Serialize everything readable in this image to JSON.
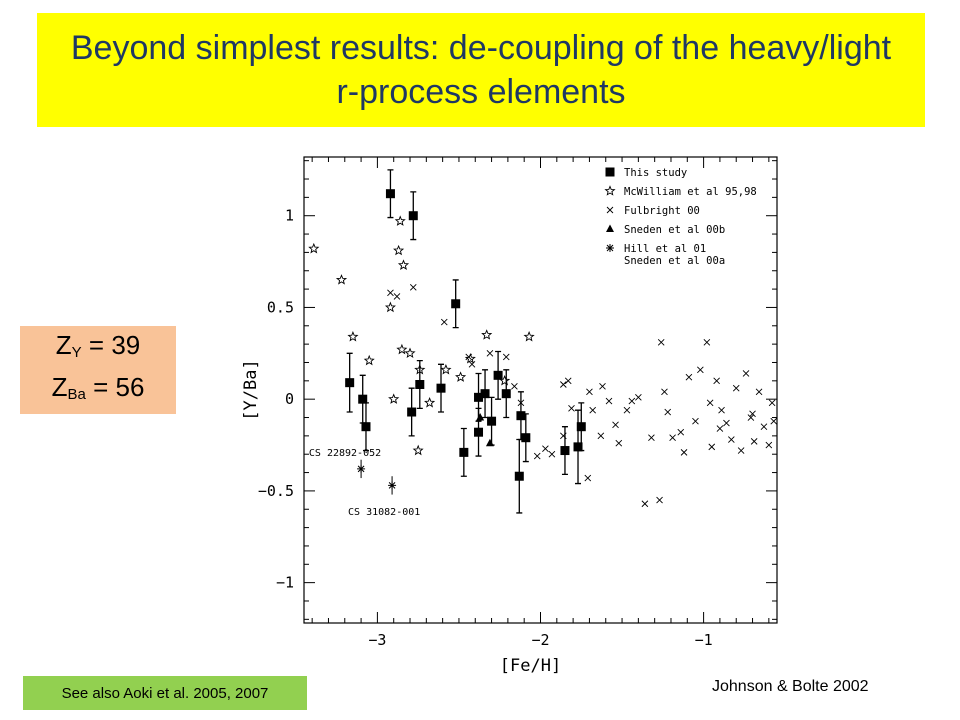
{
  "slide": {
    "title": "Beyond simplest results:  de-coupling of the heavy/light r-process elements",
    "z_y_label": "Y",
    "z_y_value": "= 39",
    "z_ba_label": "Ba",
    "z_ba_value": "= 56",
    "see_also": "See also Aoki et al. 2005, 2007",
    "citation": "Johnson & Bolte 2002"
  },
  "colors": {
    "banner": "#ffff00",
    "z_box": "#f9c398",
    "see_also_box": "#92d050",
    "title_text": "#1f3864"
  },
  "chart_data": {
    "type": "scatter",
    "xlabel": "[Fe/H]",
    "ylabel": "[Y/Ba]",
    "xlim": [
      -3.45,
      -0.55
    ],
    "ylim": [
      -1.22,
      1.32
    ],
    "xticks": [
      -3,
      -2,
      -1
    ],
    "xtick_labels": [
      "−3",
      "−2",
      "−1"
    ],
    "yticks": [
      -1,
      -0.5,
      0,
      0.5,
      1
    ],
    "ytick_labels": [
      "−1",
      "−0.5",
      "0",
      "0.5",
      "1"
    ],
    "legend_position": "top-right",
    "legend_lines": [
      {
        "marker": "square",
        "label": "This study"
      },
      {
        "marker": "star",
        "label": "McWilliam et al 95,98"
      },
      {
        "marker": "cross",
        "label": "Fulbright 00"
      },
      {
        "marker": "triangle",
        "label": "Sneden et al 00b"
      },
      {
        "marker": "asterisk",
        "label": "Hill et al 01"
      },
      {
        "marker": "none",
        "label": "Sneden et al 00a"
      }
    ],
    "annotations": [
      {
        "text": "CS 22892-052",
        "x": -3.42,
        "y": -0.31
      },
      {
        "text": "CS 31082-001",
        "x": -3.18,
        "y": -0.63
      }
    ],
    "series": [
      {
        "name": "This study",
        "marker": "square",
        "points": [
          {
            "x": -2.92,
            "y": 1.12,
            "err": 0.13
          },
          {
            "x": -2.78,
            "y": 1.0,
            "err": 0.13
          },
          {
            "x": -2.52,
            "y": 0.52,
            "err": 0.13
          },
          {
            "x": -3.17,
            "y": 0.09,
            "err": 0.16
          },
          {
            "x": -3.09,
            "y": 0.0,
            "err": 0.13
          },
          {
            "x": -3.07,
            "y": -0.15,
            "err": 0.13
          },
          {
            "x": -2.74,
            "y": 0.08,
            "err": 0.13
          },
          {
            "x": -2.79,
            "y": -0.07,
            "err": 0.13
          },
          {
            "x": -2.61,
            "y": 0.06,
            "err": 0.13
          },
          {
            "x": -2.47,
            "y": -0.29,
            "err": 0.13
          },
          {
            "x": -2.38,
            "y": 0.01,
            "err": 0.13
          },
          {
            "x": -2.34,
            "y": 0.03,
            "err": 0.13
          },
          {
            "x": -2.38,
            "y": -0.18,
            "err": 0.13
          },
          {
            "x": -2.3,
            "y": -0.12,
            "err": 0.13
          },
          {
            "x": -2.26,
            "y": 0.13,
            "err": 0.13
          },
          {
            "x": -2.21,
            "y": 0.03,
            "err": 0.13
          },
          {
            "x": -2.12,
            "y": -0.09,
            "err": 0.13
          },
          {
            "x": -2.09,
            "y": -0.21,
            "err": 0.13
          },
          {
            "x": -2.13,
            "y": -0.42,
            "err": 0.2
          },
          {
            "x": -1.85,
            "y": -0.28,
            "err": 0.13
          },
          {
            "x": -1.77,
            "y": -0.26,
            "err": 0.2
          },
          {
            "x": -1.75,
            "y": -0.15,
            "err": 0.13
          }
        ]
      },
      {
        "name": "McWilliam et al 95,98",
        "marker": "star",
        "points": [
          {
            "x": -3.39,
            "y": 0.82
          },
          {
            "x": -3.22,
            "y": 0.65
          },
          {
            "x": -3.15,
            "y": 0.34
          },
          {
            "x": -3.05,
            "y": 0.21
          },
          {
            "x": -2.86,
            "y": 0.97
          },
          {
            "x": -2.87,
            "y": 0.81
          },
          {
            "x": -2.84,
            "y": 0.73
          },
          {
            "x": -2.92,
            "y": 0.5
          },
          {
            "x": -2.85,
            "y": 0.27
          },
          {
            "x": -2.8,
            "y": 0.25
          },
          {
            "x": -2.74,
            "y": 0.16
          },
          {
            "x": -2.68,
            "y": -0.02
          },
          {
            "x": -2.58,
            "y": 0.16
          },
          {
            "x": -2.49,
            "y": 0.12
          },
          {
            "x": -2.43,
            "y": 0.22
          },
          {
            "x": -2.33,
            "y": 0.35
          },
          {
            "x": -2.22,
            "y": 0.1
          },
          {
            "x": -2.07,
            "y": 0.34
          },
          {
            "x": -2.75,
            "y": -0.28
          },
          {
            "x": -2.9,
            "y": 0.0
          }
        ]
      },
      {
        "name": "Fulbright 00",
        "marker": "cross",
        "points": [
          {
            "x": -2.88,
            "y": 0.56
          },
          {
            "x": -2.78,
            "y": 0.61
          },
          {
            "x": -2.92,
            "y": 0.58
          },
          {
            "x": -2.59,
            "y": 0.42
          },
          {
            "x": -2.44,
            "y": 0.23
          },
          {
            "x": -2.31,
            "y": 0.25
          },
          {
            "x": -2.42,
            "y": 0.19
          },
          {
            "x": -2.21,
            "y": 0.23
          },
          {
            "x": -2.16,
            "y": 0.07
          },
          {
            "x": -2.12,
            "y": -0.02
          },
          {
            "x": -2.02,
            "y": -0.31
          },
          {
            "x": -1.97,
            "y": -0.27
          },
          {
            "x": -1.93,
            "y": -0.3
          },
          {
            "x": -1.86,
            "y": 0.08
          },
          {
            "x": -1.83,
            "y": 0.1
          },
          {
            "x": -1.86,
            "y": -0.2
          },
          {
            "x": -1.81,
            "y": -0.05
          },
          {
            "x": -1.71,
            "y": -0.43
          },
          {
            "x": -1.7,
            "y": 0.04
          },
          {
            "x": -1.68,
            "y": -0.06
          },
          {
            "x": -1.63,
            "y": -0.2
          },
          {
            "x": -1.62,
            "y": 0.07
          },
          {
            "x": -1.58,
            "y": -0.01
          },
          {
            "x": -1.54,
            "y": -0.14
          },
          {
            "x": -1.52,
            "y": -0.24
          },
          {
            "x": -1.47,
            "y": -0.06
          },
          {
            "x": -1.44,
            "y": -0.01
          },
          {
            "x": -1.4,
            "y": 0.01
          },
          {
            "x": -1.36,
            "y": -0.57
          },
          {
            "x": -1.32,
            "y": -0.21
          },
          {
            "x": -1.27,
            "y": -0.55
          },
          {
            "x": -1.26,
            "y": 0.31
          },
          {
            "x": -1.24,
            "y": 0.04
          },
          {
            "x": -1.22,
            "y": -0.07
          },
          {
            "x": -1.19,
            "y": -0.21
          },
          {
            "x": -1.14,
            "y": -0.18
          },
          {
            "x": -1.12,
            "y": -0.29
          },
          {
            "x": -1.09,
            "y": 0.12
          },
          {
            "x": -1.05,
            "y": -0.12
          },
          {
            "x": -1.02,
            "y": 0.16
          },
          {
            "x": -0.98,
            "y": 0.31
          },
          {
            "x": -0.96,
            "y": -0.02
          },
          {
            "x": -0.95,
            "y": -0.26
          },
          {
            "x": -0.92,
            "y": 0.1
          },
          {
            "x": -0.89,
            "y": -0.06
          },
          {
            "x": -0.86,
            "y": -0.13
          },
          {
            "x": -0.83,
            "y": -0.22
          },
          {
            "x": -0.8,
            "y": 0.06
          },
          {
            "x": -0.77,
            "y": -0.28
          },
          {
            "x": -0.74,
            "y": 0.14
          },
          {
            "x": -0.71,
            "y": -0.1
          },
          {
            "x": -0.69,
            "y": -0.23
          },
          {
            "x": -0.66,
            "y": 0.04
          },
          {
            "x": -0.63,
            "y": -0.15
          },
          {
            "x": -0.6,
            "y": -0.25
          },
          {
            "x": -0.58,
            "y": -0.02
          },
          {
            "x": -0.57,
            "y": -0.12
          },
          {
            "x": -0.9,
            "y": -0.16
          },
          {
            "x": -0.7,
            "y": -0.08
          }
        ]
      },
      {
        "name": "Sneden et al 00b",
        "marker": "triangle",
        "points": [
          {
            "x": -2.37,
            "y": -0.1
          },
          {
            "x": -2.31,
            "y": -0.24
          }
        ]
      },
      {
        "name": "Hill et al 01 / Sneden et al 00a",
        "marker": "asterisk",
        "points": [
          {
            "x": -3.1,
            "y": -0.38
          },
          {
            "x": -2.91,
            "y": -0.47
          }
        ]
      }
    ]
  }
}
